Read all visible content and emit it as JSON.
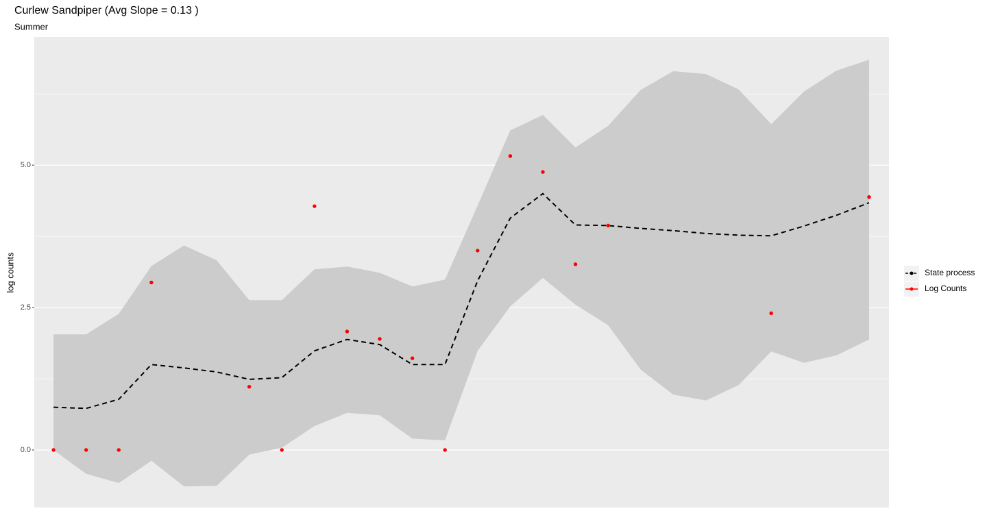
{
  "chart_data": {
    "type": "line",
    "title": "Curlew Sandpiper (Avg Slope = 0.13 )",
    "subtitle": "Summer",
    "y_label": "log counts",
    "x": [
      1,
      2,
      3,
      4,
      5,
      6,
      7,
      8,
      9,
      10,
      11,
      12,
      13,
      14,
      15,
      16,
      17,
      18,
      19,
      20,
      21,
      22,
      23,
      24,
      25,
      26
    ],
    "xlim": [
      0.41,
      26.61
    ],
    "ylim": [
      -1.01,
      7.25
    ],
    "yticks": [
      {
        "value": 0,
        "label": "0.0"
      },
      {
        "value": 2.5,
        "label": "2.5"
      },
      {
        "value": 5,
        "label": "5.0"
      }
    ],
    "y_minor_ticks": [
      1.25,
      3.75,
      6.25
    ],
    "grid": true,
    "band": {
      "color": "#cccccc",
      "upper": [
        2.03,
        2.03,
        2.39,
        3.23,
        3.59,
        3.33,
        2.63,
        2.63,
        3.17,
        3.22,
        3.11,
        2.87,
        2.99,
        4.29,
        5.61,
        5.88,
        5.31,
        5.69,
        6.32,
        6.65,
        6.6,
        6.33,
        5.72,
        6.29,
        6.66,
        6.85
      ],
      "lower": [
        0,
        -0.42,
        -0.58,
        -0.19,
        -0.64,
        -0.63,
        -0.08,
        0.04,
        0.42,
        0.65,
        0.61,
        0.2,
        0.17,
        1.74,
        2.52,
        3.02,
        2.55,
        2.19,
        1.41,
        0.97,
        0.87,
        1.14,
        1.73,
        1.53,
        1.66,
        1.94
      ]
    },
    "series": [
      {
        "name": "State process",
        "color": "#000000",
        "style": "dashed-line",
        "values": [
          0.75,
          0.73,
          0.89,
          1.5,
          1.44,
          1.37,
          1.24,
          1.27,
          1.74,
          1.94,
          1.85,
          1.5,
          1.5,
          2.97,
          4.07,
          4.5,
          3.95,
          3.94,
          3.89,
          3.85,
          3.8,
          3.77,
          3.76,
          3.93,
          4.12,
          4.34
        ]
      },
      {
        "name": "Log Counts",
        "color": "#ff0000",
        "style": "points",
        "values": [
          0,
          0,
          0,
          2.94,
          null,
          null,
          1.11,
          0,
          4.28,
          2.08,
          1.95,
          1.61,
          0,
          3.5,
          5.16,
          4.88,
          3.26,
          3.94,
          null,
          null,
          null,
          null,
          2.4,
          null,
          null,
          4.44
        ]
      }
    ],
    "legend_position": "right"
  }
}
